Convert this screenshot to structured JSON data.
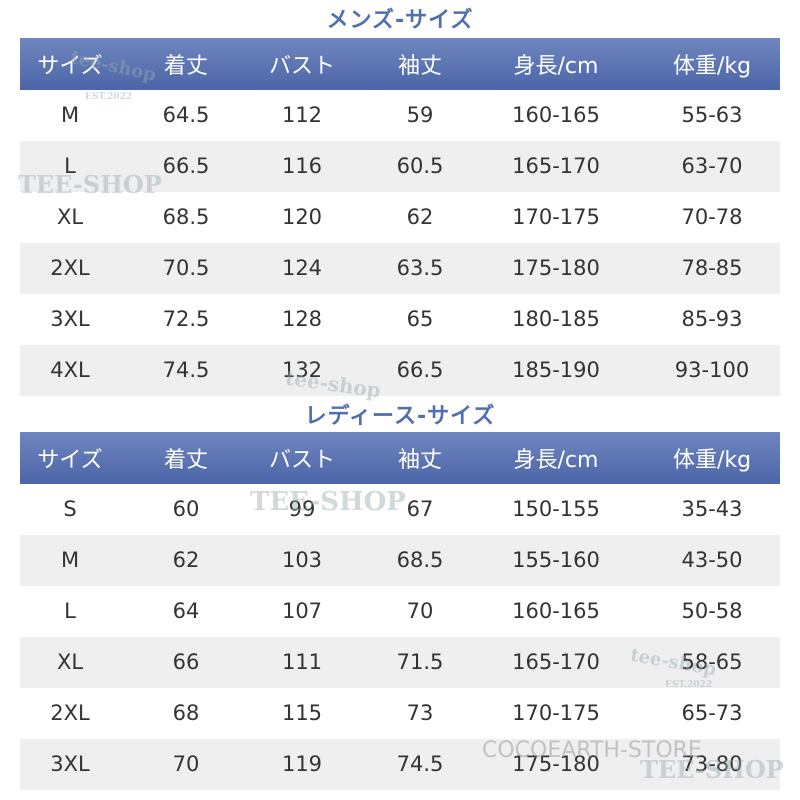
{
  "tables": [
    {
      "title": "メンズ-サイズ",
      "header": [
        "サイズ",
        "着丈",
        "バスト",
        "袖丈",
        "身長/cm",
        "体重/kg"
      ],
      "rows": [
        [
          "M",
          "64.5",
          "112",
          "59",
          "160-165",
          "55-63"
        ],
        [
          "L",
          "66.5",
          "116",
          "60.5",
          "165-170",
          "63-70"
        ],
        [
          "XL",
          "68.5",
          "120",
          "62",
          "170-175",
          "70-78"
        ],
        [
          "2XL",
          "70.5",
          "124",
          "63.5",
          "175-180",
          "78-85"
        ],
        [
          "3XL",
          "72.5",
          "128",
          "65",
          "180-185",
          "85-93"
        ],
        [
          "4XL",
          "74.5",
          "132",
          "66.5",
          "185-190",
          "93-100"
        ]
      ]
    },
    {
      "title": "レディース-サイズ",
      "header": [
        "サイズ",
        "着丈",
        "バスト",
        "袖丈",
        "身長/cm",
        "体重/kg"
      ],
      "rows": [
        [
          "S",
          "60",
          "99",
          "67",
          "150-155",
          "35-43"
        ],
        [
          "M",
          "62",
          "103",
          "68.5",
          "155-160",
          "43-50"
        ],
        [
          "L",
          "64",
          "107",
          "70",
          "160-165",
          "50-58"
        ],
        [
          "XL",
          "66",
          "111",
          "71.5",
          "165-170",
          "58-65"
        ],
        [
          "2XL",
          "68",
          "115",
          "73",
          "170-175",
          "65-73"
        ],
        [
          "3XL",
          "70",
          "119",
          "74.5",
          "175-180",
          "73-80"
        ]
      ]
    }
  ],
  "watermarks": [
    "tee-shop",
    "EST.2022",
    "TEE-SHOP",
    "tee-shop",
    "TEE-SHOP",
    "tee-shop",
    "EST.2022",
    "TEE-SHOP",
    "COCOEARTH-STORE"
  ]
}
